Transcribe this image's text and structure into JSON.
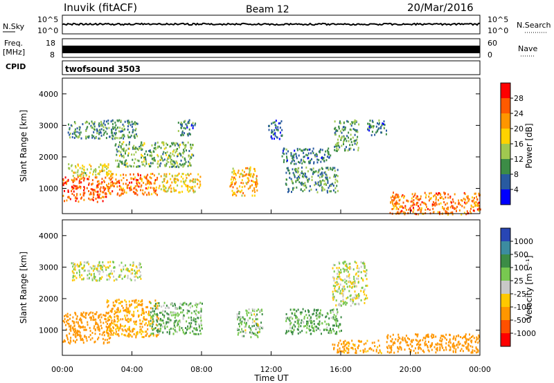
{
  "header": {
    "station": "Inuvik (fitACF)",
    "beam": "Beam 12",
    "date": "20/Mar/2016"
  },
  "noise_panel": {
    "left_label": "N.Sky",
    "left_ticks": [
      "10^5",
      "10^0"
    ],
    "right_ticks": [
      "10^5",
      "10^0"
    ],
    "right_label": "N.Search"
  },
  "freq_panel": {
    "left_label_1": "Freq.",
    "left_label_2": "[MHz]",
    "left_ticks": [
      "18",
      "8"
    ],
    "right_ticks": [
      "60",
      "0"
    ],
    "right_label": "Nave"
  },
  "cpid_panel": {
    "left_label": "CPID",
    "program": "twofsound 3503"
  },
  "power_colorbar": {
    "label": "Power [dB]",
    "ticks": [
      "28",
      "24",
      "20",
      "16",
      "12",
      "8",
      "4"
    ],
    "colors": [
      "#ff0000",
      "#ff5a00",
      "#ff9600",
      "#ffd200",
      "#a0c850",
      "#3c8c46",
      "#285aa0",
      "#0000ff"
    ]
  },
  "velocity_colorbar": {
    "label": "Velocity [m s⁻¹]",
    "ticks": [
      "1000",
      "500",
      "100",
      "25",
      "-25",
      "-100",
      "-500",
      "-1000"
    ],
    "colors": [
      "#2846b4",
      "#3c8ca0",
      "#3c8c46",
      "#78c850",
      "#c8c8c8",
      "#ffc800",
      "#ff9600",
      "#ff5000",
      "#ff0000"
    ]
  },
  "chart_data": [
    {
      "type": "heatmap",
      "ylabel": "Slant Range [km]",
      "ylim": [
        200,
        4500
      ],
      "yticks": [
        1000,
        2000,
        3000,
        4000
      ],
      "xlim": [
        0,
        24
      ],
      "colorbar_range": [
        0,
        30
      ],
      "series": [
        {
          "name": "",
          "values": [
            {
              "t0": 0.0,
              "t1": 2.5,
              "r0": 600,
              "r1": 1400,
              "v": 26
            },
            {
              "t0": 0.3,
              "t1": 2.8,
              "r0": 1400,
              "r1": 1800,
              "v": 16
            },
            {
              "t0": 2.5,
              "t1": 5.5,
              "r0": 800,
              "r1": 1500,
              "v": 24
            },
            {
              "t0": 5.5,
              "t1": 7.9,
              "r0": 900,
              "r1": 1500,
              "v": 18
            },
            {
              "t0": 3.0,
              "t1": 7.5,
              "r0": 1700,
              "r1": 2500,
              "v": 12
            },
            {
              "t0": 0.3,
              "t1": 4.3,
              "r0": 2600,
              "r1": 3200,
              "v": 10
            },
            {
              "t0": 6.6,
              "t1": 7.7,
              "r0": 2700,
              "r1": 3200,
              "v": 8
            },
            {
              "t0": 9.6,
              "t1": 11.2,
              "r0": 800,
              "r1": 1700,
              "v": 20
            },
            {
              "t0": 11.8,
              "t1": 12.6,
              "r0": 2600,
              "r1": 3200,
              "v": 6
            },
            {
              "t0": 12.8,
              "t1": 15.8,
              "r0": 900,
              "r1": 1700,
              "v": 10
            },
            {
              "t0": 12.6,
              "t1": 15.4,
              "r0": 1800,
              "r1": 2300,
              "v": 8
            },
            {
              "t0": 15.6,
              "t1": 17.0,
              "r0": 2200,
              "r1": 3200,
              "v": 10
            },
            {
              "t0": 17.5,
              "t1": 18.6,
              "r0": 2700,
              "r1": 3200,
              "v": 8
            },
            {
              "t0": 18.8,
              "t1": 24.0,
              "r0": 200,
              "r1": 900,
              "v": 24
            }
          ]
        }
      ]
    },
    {
      "type": "heatmap",
      "ylabel": "Slant Range [km]",
      "xlabel": "Time UT",
      "ylim": [
        200,
        4500
      ],
      "yticks": [
        1000,
        2000,
        3000,
        4000
      ],
      "xlim": [
        0,
        24
      ],
      "xticks": [
        "00:00",
        "04:00",
        "08:00",
        "12:00",
        "16:00",
        "20:00",
        "00:00"
      ],
      "series": [
        {
          "name": "",
          "values": [
            {
              "t0": 0.0,
              "t1": 2.8,
              "r0": 600,
              "r1": 1600,
              "v": -200
            },
            {
              "t0": 2.5,
              "t1": 5.5,
              "r0": 800,
              "r1": 2000,
              "v": -120
            },
            {
              "t0": 5.0,
              "t1": 8.0,
              "r0": 900,
              "r1": 1900,
              "v": 80
            },
            {
              "t0": 0.5,
              "t1": 4.5,
              "r0": 2600,
              "r1": 3200,
              "v": 10
            },
            {
              "t0": 10.0,
              "t1": 11.5,
              "r0": 800,
              "r1": 1700,
              "v": 60
            },
            {
              "t0": 12.8,
              "t1": 16.0,
              "r0": 900,
              "r1": 1700,
              "v": 90
            },
            {
              "t0": 15.5,
              "t1": 17.5,
              "r0": 1800,
              "r1": 3200,
              "v": 0
            },
            {
              "t0": 15.5,
              "t1": 18.3,
              "r0": 300,
              "r1": 700,
              "v": -150
            },
            {
              "t0": 18.6,
              "t1": 24.0,
              "r0": 300,
              "r1": 900,
              "v": -300
            }
          ]
        }
      ]
    }
  ]
}
